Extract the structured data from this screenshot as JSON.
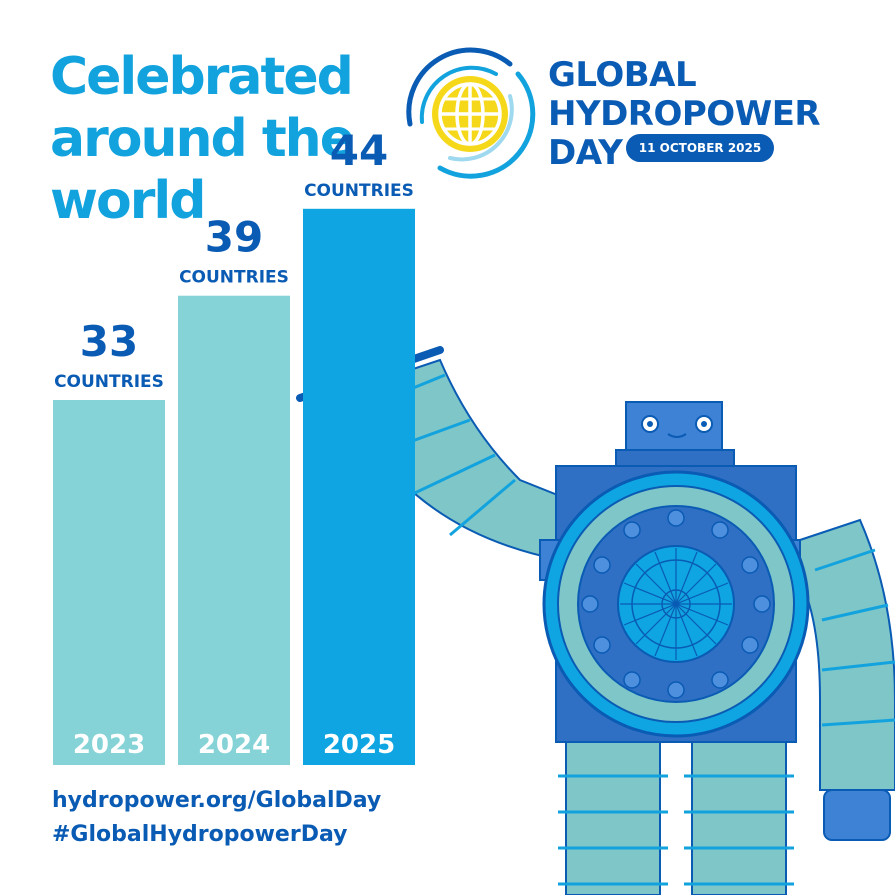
{
  "headline": {
    "line1": "Celebrated",
    "line2": "around the",
    "line3": "world"
  },
  "logo": {
    "line1": "GLOBAL",
    "line2": "HYDROPOWER",
    "line3": "DAY",
    "date": "11 OCTOBER 2025",
    "icon": "globe-icon"
  },
  "chart_data": {
    "type": "bar",
    "categories": [
      "2023",
      "2024",
      "2025"
    ],
    "values": [
      33,
      39,
      44
    ],
    "unit_label": "COUNTRIES",
    "ylim": [
      0,
      44
    ],
    "grid": false,
    "colors": [
      "#86d3d7",
      "#86d3d7",
      "#0ea5e2"
    ],
    "value_color": "#0a5bb4",
    "category_label_color": "#ffffff"
  },
  "footer": {
    "url": "hydropower.org/GlobalDay",
    "hashtag": "#GlobalHydropowerDay"
  },
  "illustration": {
    "icon": "hydropower-robot-icon"
  },
  "colors": {
    "headline": "#12a3de",
    "brand_blue": "#0a5bb4",
    "teal": "#86d3d7",
    "bright_blue": "#0ea5e2",
    "globe_yellow": "#f6d81b"
  }
}
